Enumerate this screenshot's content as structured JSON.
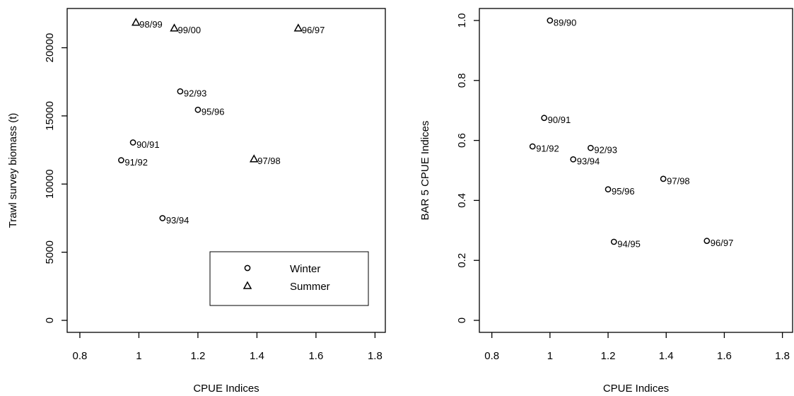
{
  "chart_data": [
    {
      "type": "scatter",
      "x_label": "CPUE Indices",
      "y_label": "Trawl survey biomass (t)",
      "xlim": [
        0.757,
        1.835
      ],
      "ylim": [
        -880,
        22880
      ],
      "xticks": [
        0.8,
        1.0,
        1.2,
        1.4,
        1.6,
        1.8
      ],
      "yticks": [
        0,
        5000,
        10000,
        15000,
        20000
      ],
      "legend": "bottom-right",
      "grid": false,
      "series": [
        {
          "name": "Winter",
          "marker": "circle",
          "color": "#000000",
          "x": [
            1.14,
            1.2,
            0.98,
            0.94,
            1.08
          ],
          "values": [
            16800,
            15450,
            13050,
            11750,
            7500
          ],
          "labels": [
            "92/93",
            "95/96",
            "90/91",
            "91/92",
            "93/94"
          ]
        },
        {
          "name": "Summer",
          "marker": "triangle",
          "color": "#000000",
          "x": [
            0.99,
            1.12,
            1.54,
            1.39
          ],
          "values": [
            21860,
            21440,
            21440,
            11840
          ],
          "labels": [
            "98/99",
            "99/00",
            "96/97",
            "97/98"
          ]
        }
      ]
    },
    {
      "type": "scatter",
      "x_label": "CPUE Indices",
      "y_label": "BAR 5 CPUE Indices",
      "xlim": [
        0.757,
        1.835
      ],
      "ylim": [
        -0.04,
        1.04
      ],
      "xticks": [
        0.8,
        1.0,
        1.2,
        1.4,
        1.6,
        1.8
      ],
      "yticks": [
        0.0,
        0.2,
        0.4,
        0.6,
        0.8,
        {
          "value": 1.0,
          "label": "1.0"
        }
      ],
      "grid": false,
      "series": [
        {
          "marker": "circle",
          "color": "#000000",
          "x": [
            1.0,
            0.98,
            0.94,
            1.14,
            1.08,
            1.2,
            1.39,
            1.22,
            1.54
          ],
          "values": [
            1.0,
            0.675,
            0.58,
            0.575,
            0.537,
            0.437,
            0.472,
            0.262,
            0.265
          ],
          "labels": [
            "89/90",
            "90/91",
            "91/92",
            "92/93",
            "93/94",
            "95/96",
            "97/98",
            "94/95",
            "96/97"
          ]
        }
      ]
    }
  ]
}
